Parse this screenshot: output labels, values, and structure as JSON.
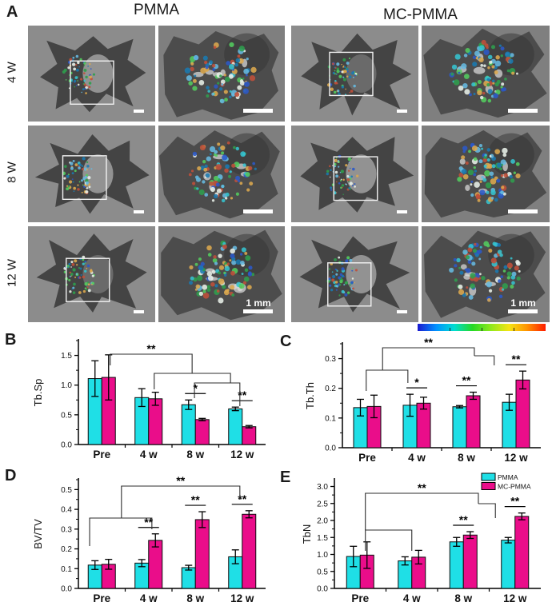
{
  "panel_labels": {
    "a": "A",
    "b": "B",
    "c": "C",
    "d": "D",
    "e": "E"
  },
  "panel_a": {
    "group_headers": [
      "PMMA",
      "MC-PMMA"
    ],
    "row_labels": [
      "4 W",
      "8 W",
      "12 W"
    ],
    "scalebar_label": "1 mm",
    "tiles": [
      {
        "group": "PMMA",
        "week": "4 W",
        "view": "full"
      },
      {
        "group": "PMMA",
        "week": "4 W",
        "view": "zoom"
      },
      {
        "group": "MC-PMMA",
        "week": "4 W",
        "view": "full"
      },
      {
        "group": "MC-PMMA",
        "week": "4 W",
        "view": "zoom"
      },
      {
        "group": "PMMA",
        "week": "8 W",
        "view": "full"
      },
      {
        "group": "PMMA",
        "week": "8 W",
        "view": "zoom"
      },
      {
        "group": "MC-PMMA",
        "week": "8 W",
        "view": "full"
      },
      {
        "group": "MC-PMMA",
        "week": "8 W",
        "view": "zoom"
      },
      {
        "group": "PMMA",
        "week": "12 W",
        "view": "full"
      },
      {
        "group": "PMMA",
        "week": "12 W",
        "view": "zoom",
        "scalebar_text": "1 mm"
      },
      {
        "group": "MC-PMMA",
        "week": "12 W",
        "view": "full"
      },
      {
        "group": "MC-PMMA",
        "week": "12 W",
        "view": "zoom",
        "scalebar_text": "1 mm"
      }
    ]
  },
  "colorbar": {
    "gradient": [
      "#1a18cf",
      "#0090ff",
      "#00dcd2",
      "#25d925",
      "#8fe81c",
      "#f5e412",
      "#ff9100",
      "#ff1c00"
    ]
  },
  "legend": {
    "items": [
      {
        "label": "PMMA",
        "color": "#1fdfe6"
      },
      {
        "label": "MC-PMMA",
        "color": "#ea0d8a"
      }
    ]
  },
  "chart_data": [
    {
      "panel": "B",
      "type": "bar",
      "ylabel": "Tb.Sp",
      "categories": [
        "Pre",
        "4 w",
        "8 w",
        "12 w"
      ],
      "ylim": [
        0,
        1.75
      ],
      "yticks": [
        0.0,
        0.5,
        1.0,
        1.5
      ],
      "minor_step": 0.25,
      "series": [
        {
          "name": "PMMA",
          "color": "#1fdfe6",
          "values": [
            1.11,
            0.79,
            0.67,
            0.6
          ],
          "errors": [
            0.3,
            0.15,
            0.08,
            0.03
          ]
        },
        {
          "name": "MC-PMMA",
          "color": "#ea0d8a",
          "values": [
            1.13,
            0.77,
            0.42,
            0.3
          ],
          "errors": [
            0.38,
            0.11,
            0.02,
            0.02
          ]
        }
      ],
      "pair_sig": [
        {
          "cat": 2,
          "label": "*"
        },
        {
          "cat": 3,
          "label": "**"
        }
      ],
      "brackets": [
        {
          "a1": 0.18,
          "a2": 1.93,
          "y": 23,
          "d1": 14,
          "d2": 24,
          "label": "**"
        },
        {
          "a1": 1.12,
          "a2": 2.75,
          "y": 47,
          "d1": 20,
          "d2": 12
        },
        {
          "a1": 1.98,
          "a2": 2.95,
          "y": 59,
          "d1": 19,
          "d2": 29
        }
      ]
    },
    {
      "panel": "C",
      "type": "bar",
      "ylabel": "Tb.Th",
      "categories": [
        "Pre",
        "4 w",
        "8 w",
        "12 w"
      ],
      "ylim": [
        0,
        0.35
      ],
      "yticks": [
        0.0,
        0.1,
        0.2,
        0.3
      ],
      "minor_step": 0.05,
      "series": [
        {
          "name": "PMMA",
          "color": "#1fdfe6",
          "values": [
            0.135,
            0.143,
            0.138,
            0.153
          ],
          "errors": [
            0.028,
            0.037,
            0.004,
            0.027
          ]
        },
        {
          "name": "MC-PMMA",
          "color": "#ea0d8a",
          "values": [
            0.139,
            0.15,
            0.175,
            0.228
          ],
          "errors": [
            0.038,
            0.02,
            0.012,
            0.03
          ]
        }
      ],
      "pair_sig": [
        {
          "cat": 1,
          "label": "*"
        },
        {
          "cat": 2,
          "label": "**"
        },
        {
          "cat": 3,
          "label": "**"
        }
      ],
      "brackets": [
        {
          "a1": 0.31,
          "a2": 2.16,
          "y": 11,
          "d1": 28,
          "d2": 10,
          "label": "**"
        },
        {
          "a1": -0.02,
          "a2": 0.82,
          "y": 39,
          "d1": 26,
          "d2": 16
        },
        {
          "a1": 2.16,
          "a2": 2.56,
          "y": 21,
          "d1": 0,
          "d2": 12
        }
      ]
    },
    {
      "panel": "D",
      "type": "bar",
      "ylabel": "BV/TV",
      "categories": [
        "Pre",
        "4 w",
        "8 w",
        "12 w"
      ],
      "ylim": [
        0,
        0.55
      ],
      "yticks": [
        0.0,
        0.1,
        0.2,
        0.3,
        0.4,
        0.5
      ],
      "minor_step": 0.05,
      "series": [
        {
          "name": "PMMA",
          "color": "#1fdfe6",
          "values": [
            0.118,
            0.128,
            0.105,
            0.16
          ],
          "errors": [
            0.022,
            0.018,
            0.012,
            0.035
          ]
        },
        {
          "name": "MC-PMMA",
          "color": "#ea0d8a",
          "values": [
            0.122,
            0.243,
            0.348,
            0.375
          ],
          "errors": [
            0.025,
            0.033,
            0.04,
            0.018
          ]
        }
      ],
      "pair_sig": [
        {
          "cat": 1,
          "label": "**"
        },
        {
          "cat": 2,
          "label": "**"
        },
        {
          "cat": 3,
          "label": "**"
        }
      ],
      "brackets": [
        {
          "a1": 0.42,
          "a2": 2.95,
          "y": 16,
          "d1": 40,
          "d2": 17,
          "label": "**"
        },
        {
          "a1": -0.26,
          "a2": 1.07,
          "y": 56,
          "d1": 35,
          "d2": 14
        }
      ]
    },
    {
      "panel": "E",
      "type": "bar",
      "ylabel": "TbN",
      "legend": true,
      "categories": [
        "Pre",
        "4 w",
        "8 w",
        "12 w"
      ],
      "ylim": [
        0,
        3.2
      ],
      "yticks": [
        0.0,
        0.5,
        1.0,
        1.5,
        2.0,
        2.5,
        3.0
      ],
      "minor_step": 0.25,
      "series": [
        {
          "name": "PMMA",
          "color": "#1fdfe6",
          "values": [
            0.94,
            0.81,
            1.37,
            1.42
          ],
          "errors": [
            0.3,
            0.12,
            0.13,
            0.08
          ]
        },
        {
          "name": "MC-PMMA",
          "color": "#ea0d8a",
          "values": [
            0.98,
            0.92,
            1.57,
            2.12
          ],
          "errors": [
            0.39,
            0.2,
            0.1,
            0.1
          ]
        }
      ],
      "pair_sig": [
        {
          "cat": 2,
          "label": "**"
        },
        {
          "cat": 3,
          "label": "**"
        }
      ],
      "brackets": [
        {
          "a1": 0.1,
          "a2": 2.29,
          "y": 25,
          "d1": 46,
          "d2": 13,
          "label": "**"
        },
        {
          "a1": 0.1,
          "a2": 1.0,
          "y": 71,
          "d1": 26,
          "d2": 26
        },
        {
          "a1": 2.29,
          "a2": 2.62,
          "y": 38,
          "d1": 0,
          "d2": 18
        }
      ]
    }
  ]
}
